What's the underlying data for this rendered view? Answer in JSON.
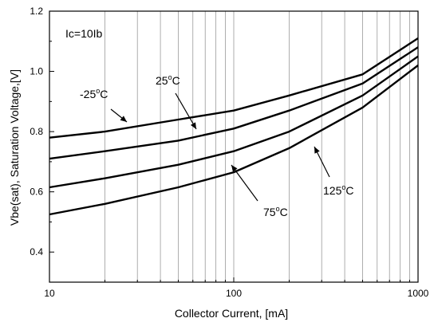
{
  "chart_data": {
    "type": "line",
    "xlabel": "Collector Current, [mA]",
    "ylabel": "Vbe(sat), Saturation Voltage,[V]",
    "xscale": "log",
    "xlim": [
      10,
      1000
    ],
    "ylim": [
      0.3,
      1.2
    ],
    "xticks": [
      {
        "value": 10,
        "label": "10"
      },
      {
        "value": 100,
        "label": "100"
      },
      {
        "value": 1000,
        "label": "1000"
      }
    ],
    "yticks": [
      {
        "value": 0.4,
        "label": "0.4"
      },
      {
        "value": 0.6,
        "label": "0.6"
      },
      {
        "value": 0.8,
        "label": "0.8"
      },
      {
        "value": 1.0,
        "label": "1.0"
      },
      {
        "value": 1.2,
        "label": "1.2"
      }
    ],
    "grid": "log-x vertical gridlines",
    "condition": "Ic=10Ib",
    "series": [
      {
        "name": "-25°C",
        "label_main": "-25",
        "label_sup": "o",
        "label_unit": "C",
        "x": [
          10,
          20,
          50,
          100,
          200,
          500,
          1000
        ],
        "y": [
          0.78,
          0.8,
          0.84,
          0.87,
          0.92,
          0.99,
          1.11
        ]
      },
      {
        "name": "25°C",
        "label_main": "25",
        "label_sup": "o",
        "label_unit": "C",
        "x": [
          10,
          20,
          50,
          100,
          200,
          500,
          1000
        ],
        "y": [
          0.71,
          0.735,
          0.77,
          0.81,
          0.87,
          0.96,
          1.08
        ]
      },
      {
        "name": "75°C",
        "label_main": "75",
        "label_sup": "o",
        "label_unit": "C",
        "x": [
          10,
          20,
          50,
          100,
          200,
          500,
          1000
        ],
        "y": [
          0.615,
          0.645,
          0.69,
          0.735,
          0.8,
          0.92,
          1.05
        ]
      },
      {
        "name": "125°C",
        "label_main": "125",
        "label_sup": "o",
        "label_unit": "C",
        "x": [
          10,
          20,
          50,
          100,
          200,
          500,
          1000
        ],
        "y": [
          0.525,
          0.56,
          0.615,
          0.665,
          0.745,
          0.88,
          1.02
        ]
      }
    ]
  }
}
